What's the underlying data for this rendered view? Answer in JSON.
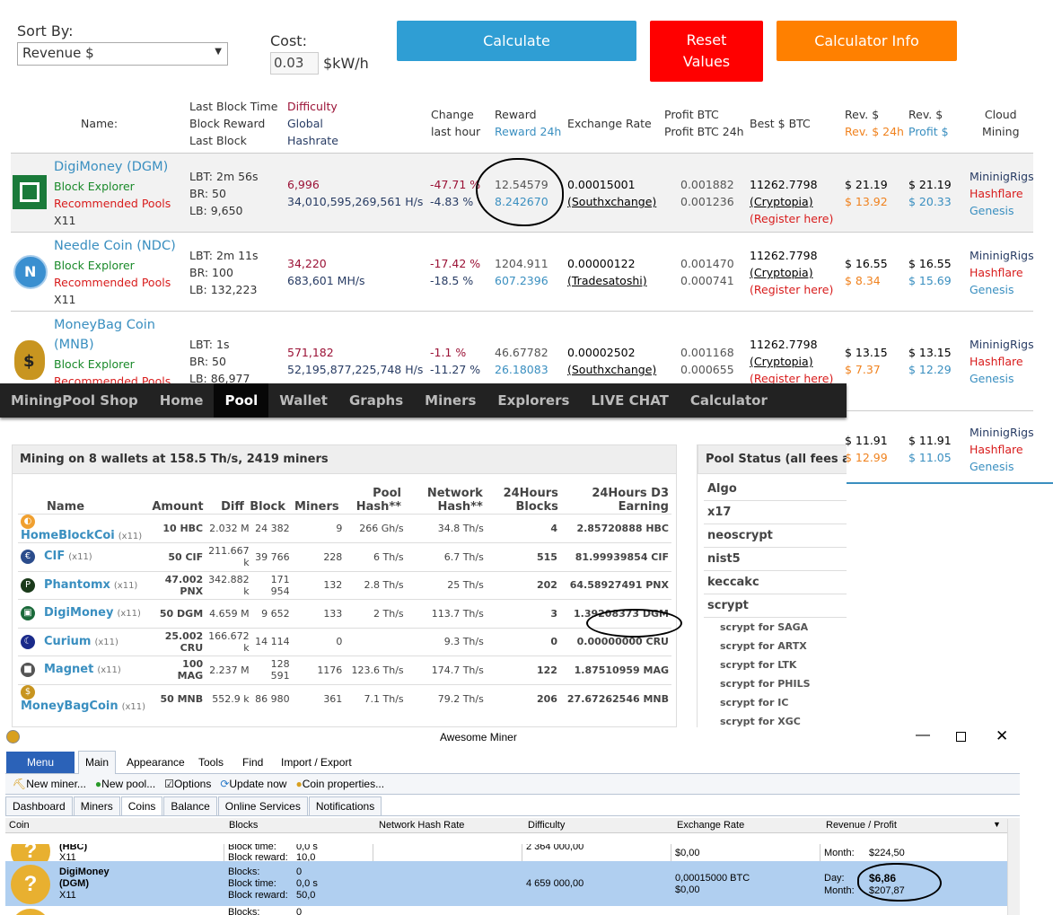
{
  "controls": {
    "sort_label": "Sort By:",
    "sort_value": "Revenue $",
    "cost_label": "Cost:",
    "cost_value": "0.03",
    "cost_unit": "$kW/h",
    "calculate": "Calculate",
    "reset": [
      "Reset",
      "Values"
    ],
    "info": "Calculator Info"
  },
  "headers": {
    "name": "Name:",
    "lbt": [
      "Last Block Time",
      "Block Reward",
      "Last Block"
    ],
    "diff": [
      "Difficulty",
      "Global",
      "Hashrate"
    ],
    "change": [
      "Change",
      "last hour"
    ],
    "reward": [
      "Reward",
      "Reward 24h"
    ],
    "exchange": "Exchange Rate",
    "profit": [
      "Profit BTC",
      "Profit BTC 24h"
    ],
    "best": "Best $ BTC",
    "rev1": [
      "Rev. $",
      "Rev. $ 24h"
    ],
    "rev2": [
      "Rev. $",
      "Profit $"
    ],
    "cloud": [
      "Cloud",
      "Mining"
    ]
  },
  "coins": [
    {
      "name": "DigiMoney (DGM)",
      "explorer": "Block Explorer",
      "pools": "Recommended Pools",
      "algo": "X11",
      "lbt": "LBT: 2m 56s",
      "br": "BR: 50",
      "lb": "LB: 9,650",
      "diff": "6,996",
      "hash": "34,010,595,269,561 H/s",
      "ch1": "-47.71 %",
      "ch2": "-4.83 %",
      "rw1": "12.54579",
      "rw2": "8.242670",
      "ex": "0.00015001",
      "exch": "(Southxchange)",
      "p1": "0.001882",
      "p2": "0.001236",
      "best": "11262.7798",
      "bestex": "(Cryptopia)",
      "reg": "(Register here)",
      "r1": "$ 21.19",
      "r1b": "$ 13.92",
      "r2": "$ 21.19",
      "r2b": "$ 20.33"
    },
    {
      "name": "Needle Coin (NDC)",
      "explorer": "Block Explorer",
      "pools": "Recommended Pools",
      "algo": "X11",
      "lbt": "LBT: 2m 11s",
      "br": "BR: 100",
      "lb": "LB: 132,223",
      "diff": "34,220",
      "hash": "683,601 MH/s",
      "ch1": "-17.42 %",
      "ch2": "-18.5 %",
      "rw1": "1204.911",
      "rw2": "607.2396",
      "ex": "0.00000122",
      "exch": "(Tradesatoshi)",
      "p1": "0.001470",
      "p2": "0.000741",
      "best": "11262.7798",
      "bestex": "(Cryptopia)",
      "reg": "(Register here)",
      "r1": "$ 16.55",
      "r1b": "$ 8.34",
      "r2": "$ 16.55",
      "r2b": "$ 15.69"
    },
    {
      "name1": "MoneyBag Coin",
      "name2": "(MNB)",
      "explorer": "Block Explorer",
      "pools": "Recommended Pools",
      "lbt": "LBT: 1s",
      "br": "BR: 50",
      "lb": "LB: 86,977",
      "diff": "571,182",
      "hash": "52,195,877,225,748 H/s",
      "ch1": "-1.1 %",
      "ch2": "-11.27 %",
      "rw1": "46.67782",
      "rw2": "26.18083",
      "ex": "0.00002502",
      "exch": "(Southxchange)",
      "p1": "0.001168",
      "p2": "0.000655",
      "best": "11262.7798",
      "bestex": "(Cryptopia)",
      "reg": "(Register here)",
      "r1": "$ 13.15",
      "r1b": "$ 7.37",
      "r2": "$ 13.15",
      "r2b": "$ 12.29"
    }
  ],
  "cloud": [
    "MininigRigs",
    "Hashflare",
    "Genesis"
  ],
  "row4": {
    "r1": "$ 11.91",
    "r1b": "$ 12.99",
    "r2": "$ 11.91",
    "r2b": "$ 11.05"
  },
  "nav": [
    "MiningPool Shop",
    "Home",
    "Pool",
    "Wallet",
    "Graphs",
    "Miners",
    "Explorers",
    "LIVE CHAT",
    "Calculator"
  ],
  "pool": {
    "title": "Mining on 8 wallets at 158.5 Th/s, 2419 miners",
    "cols": [
      "Name",
      "Amount",
      "Diff",
      "Block",
      "Miners",
      "Pool Hash**",
      "Network Hash**",
      "24Hours Blocks",
      "24Hours D3 Earning"
    ],
    "rows": [
      {
        "name": "HomeBlockCoi",
        "algo": "(x11)",
        "amount": "10 HBC",
        "diff": "2.032 M",
        "block": "24 382",
        "miners": "9",
        "pool": "266 Gh/s",
        "net": "34.8 Th/s",
        "blocks": "4",
        "earn": "2.85720888 HBC"
      },
      {
        "name": "CIF",
        "algo": "(x11)",
        "amount": "50 CIF",
        "diff": "211.667 k",
        "block": "39 766",
        "miners": "228",
        "pool": "6 Th/s",
        "net": "6.7 Th/s",
        "blocks": "515",
        "earn": "81.99939854 CIF"
      },
      {
        "name": "Phantomx",
        "algo": "(x11)",
        "amount": "47.002 PNX",
        "diff": "342.882 k",
        "block": "171 954",
        "miners": "132",
        "pool": "2.8 Th/s",
        "net": "25 Th/s",
        "blocks": "202",
        "earn": "64.58927491 PNX"
      },
      {
        "name": "DigiMoney",
        "algo": "(x11)",
        "amount": "50 DGM",
        "diff": "4.659 M",
        "block": "9 652",
        "miners": "133",
        "pool": "2 Th/s",
        "net": "113.7 Th/s",
        "blocks": "3",
        "earn": "1.39208373 DGM"
      },
      {
        "name": "Curium",
        "algo": "(x11)",
        "amount": "25.002 CRU",
        "diff": "166.672 k",
        "block": "14 114",
        "miners": "0",
        "pool": "",
        "net": "9.3 Th/s",
        "blocks": "0",
        "earn": "0.00000000 CRU"
      },
      {
        "name": "Magnet",
        "algo": "(x11)",
        "amount": "100 MAG",
        "diff": "2.237 M",
        "block": "128 591",
        "miners": "1176",
        "pool": "123.6 Th/s",
        "net": "174.7 Th/s",
        "blocks": "122",
        "earn": "1.87510959 MAG"
      },
      {
        "name": "MoneyBagCoin",
        "algo": "(x11)",
        "amount": "50 MNB",
        "diff": "552.9 k",
        "block": "86 980",
        "miners": "361",
        "pool": "7.1 Th/s",
        "net": "79.2 Th/s",
        "blocks": "206",
        "earn": "27.67262546 MNB"
      }
    ],
    "status_title": "Pool Status (all fees are t",
    "algos": [
      "Algo",
      "x17",
      "neoscrypt",
      "nist5",
      "keccakc",
      "scrypt"
    ],
    "subs": [
      "scrypt for SAGA",
      "scrypt for ARTX",
      "scrypt for LTK",
      "scrypt for PHILS",
      "scrypt for IC",
      "scrypt for XGC"
    ]
  },
  "am": {
    "title": "Awesome Miner",
    "menu": "Menu",
    "ribbon_tabs": [
      "Main",
      "Appearance",
      "Tools",
      "Find",
      "Import / Export"
    ],
    "toolbar": [
      "New miner...",
      "New pool...",
      "Options",
      "Update now",
      "Coin properties..."
    ],
    "tabs": [
      "Dashboard",
      "Miners",
      "Coins",
      "Balance",
      "Online Services",
      "Notifications"
    ],
    "cols": [
      "Coin",
      "Blocks",
      "Network Hash Rate",
      "Difficulty",
      "Exchange Rate",
      "Revenue / Profit"
    ],
    "row1": {
      "name": "(HBC)",
      "algo": "X11",
      "bt": "Block time:",
      "btv": "0,0  s",
      "br": "Block reward:",
      "brv": "10,0",
      "diff": "2 364 000,00",
      "ex": "$0,00",
      "m": "Month:",
      "mv": "$224,50"
    },
    "row2": {
      "name1": "DigiMoney",
      "name2": "(DGM)",
      "algo": "X11",
      "bl": "Blocks:",
      "blv": "0",
      "bt": "Block time:",
      "btv": "0,0  s",
      "br": "Block reward:",
      "brv": "50,0",
      "diff": "4 659 000,00",
      "ex1": "0,00015000 BTC",
      "ex2": "$0,00",
      "d": "Day:",
      "dv": "$6,86",
      "m": "Month:",
      "mv": "$207,87"
    },
    "row3": {
      "bl": "Blocks:",
      "blv": "0"
    }
  }
}
